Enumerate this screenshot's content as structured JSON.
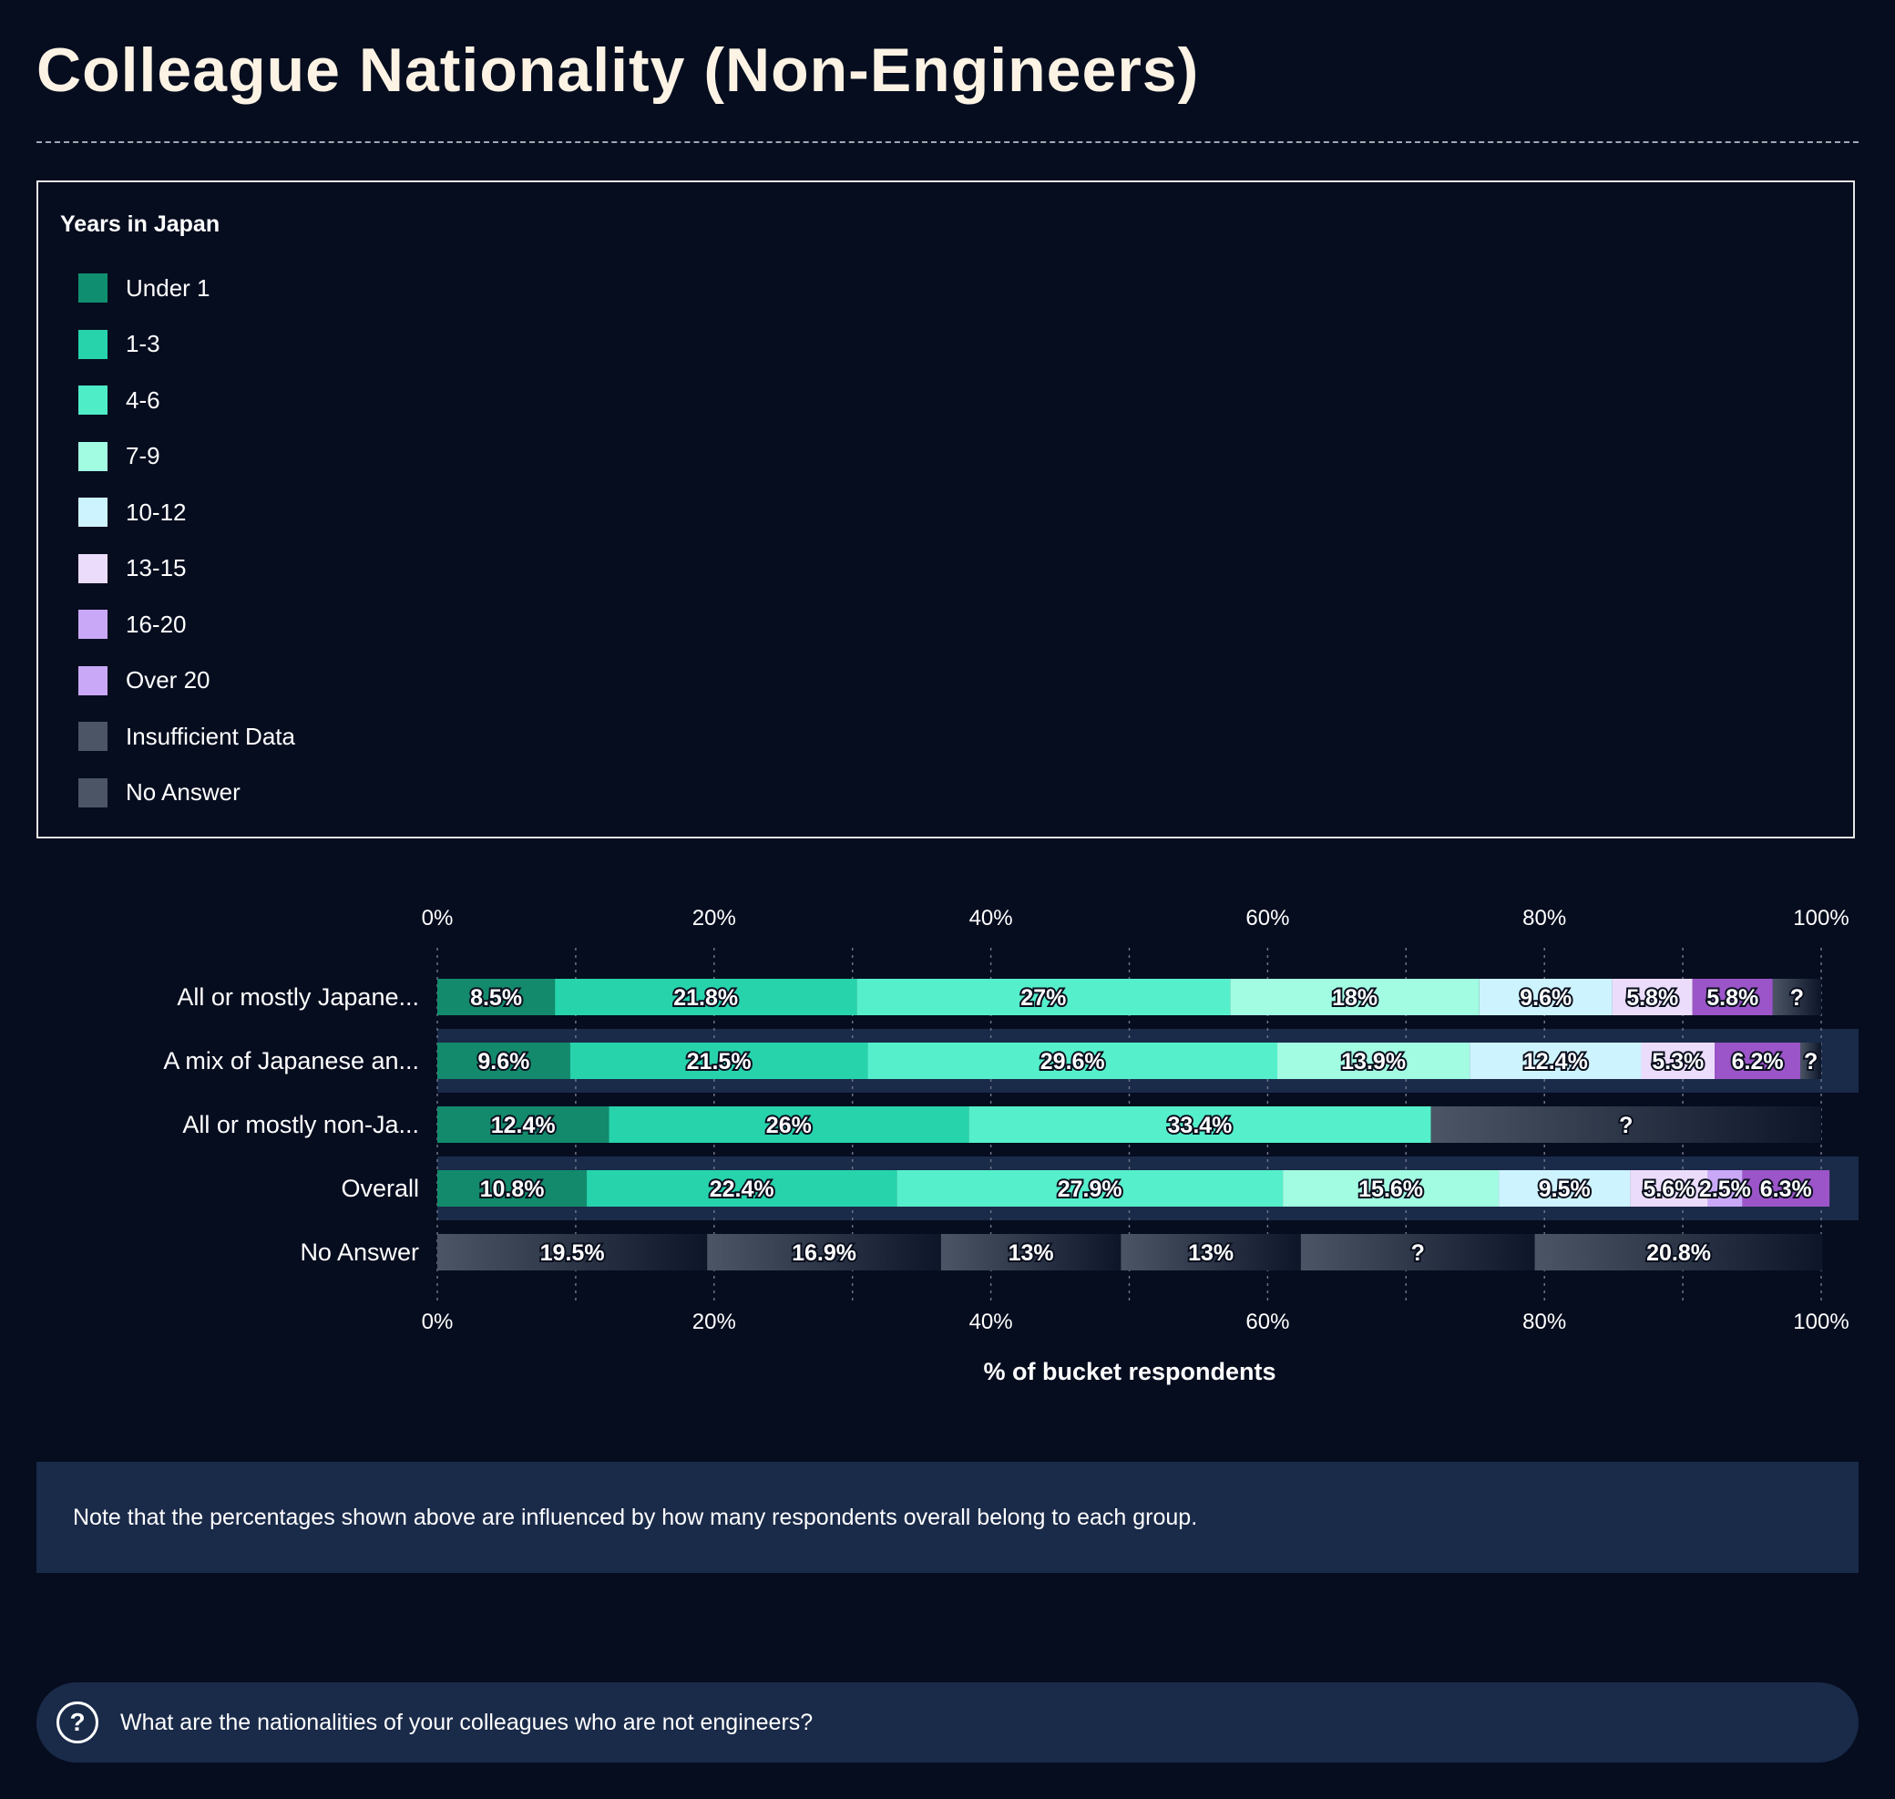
{
  "page": {
    "title": "Colleague Nationality (Non-Engineers)",
    "note": "Note that the percentages shown above are influenced by how many respondents overall belong to each group.",
    "question": "What are the nationalities of your colleagues who are not engineers?",
    "question_icon": "?"
  },
  "legend": {
    "title": "Years in Japan",
    "items": [
      {
        "label": "Under 1",
        "color": "#0f8f6f"
      },
      {
        "label": "1-3",
        "color": "#27d3ab"
      },
      {
        "label": "4-6",
        "color": "#4eedc8"
      },
      {
        "label": "7-9",
        "color": "#a2fce2"
      },
      {
        "label": "10-12",
        "color": "#cdf4fe"
      },
      {
        "label": "13-15",
        "color": "#ecdcfc"
      },
      {
        "label": "16-20",
        "color": "#c9a8f7"
      },
      {
        "label": "Over 20",
        "color": "#c9a8f7"
      },
      {
        "label": "Insufficient Data",
        "color": "#4b5565"
      },
      {
        "label": "No Answer",
        "color": "#4b5565"
      }
    ]
  },
  "chart_data": {
    "type": "bar",
    "orientation": "horizontal",
    "stacked": true,
    "xlabel": "% of bucket respondents",
    "xlim": [
      0,
      100
    ],
    "ticks": [
      "0%",
      "20%",
      "40%",
      "60%",
      "80%",
      "100%"
    ],
    "categories": [
      "All or mostly Japane...",
      "A mix of Japanese an...",
      "All or mostly non-Ja...",
      "Overall",
      "No Answer"
    ],
    "highlighted_rows": [
      1,
      3
    ],
    "rows": [
      {
        "segments": [
          {
            "v": 8.5,
            "label": "8.5%",
            "color": "#138a6c"
          },
          {
            "v": 21.8,
            "label": "21.8%",
            "color": "#27d3ab"
          },
          {
            "v": 27,
            "label": "27%",
            "color": "#55f0cb"
          },
          {
            "v": 18,
            "label": "18%",
            "color": "#a2fce2"
          },
          {
            "v": 9.6,
            "label": "9.6%",
            "color": "#cdf4fe"
          },
          {
            "v": 5.8,
            "label": "5.8%",
            "color": "#ecdcfc"
          },
          {
            "v": 5.8,
            "label": "5.8%",
            "color": "#9b55c8"
          },
          {
            "v": 3.5,
            "label": "?",
            "color": "#4b5565",
            "fade": true
          }
        ]
      },
      {
        "segments": [
          {
            "v": 9.6,
            "label": "9.6%",
            "color": "#138a6c"
          },
          {
            "v": 21.5,
            "label": "21.5%",
            "color": "#27d3ab"
          },
          {
            "v": 29.6,
            "label": "29.6%",
            "color": "#55f0cb"
          },
          {
            "v": 13.9,
            "label": "13.9%",
            "color": "#a2fce2"
          },
          {
            "v": 12.4,
            "label": "12.4%",
            "color": "#cdf4fe"
          },
          {
            "v": 5.3,
            "label": "5.3%",
            "color": "#ecdcfc"
          },
          {
            "v": 6.2,
            "label": "6.2%",
            "color": "#9b55c8"
          },
          {
            "v": 1.5,
            "label": "?",
            "color": "#4b5565",
            "fade": true
          }
        ]
      },
      {
        "segments": [
          {
            "v": 12.4,
            "label": "12.4%",
            "color": "#138a6c"
          },
          {
            "v": 26,
            "label": "26%",
            "color": "#27d3ab"
          },
          {
            "v": 33.4,
            "label": "33.4%",
            "color": "#55f0cb"
          },
          {
            "v": 28.2,
            "label": "?",
            "color": "#4b5565",
            "fade": true
          }
        ]
      },
      {
        "segments": [
          {
            "v": 10.8,
            "label": "10.8%",
            "color": "#138a6c"
          },
          {
            "v": 22.4,
            "label": "22.4%",
            "color": "#27d3ab"
          },
          {
            "v": 27.9,
            "label": "27.9%",
            "color": "#55f0cb"
          },
          {
            "v": 15.6,
            "label": "15.6%",
            "color": "#a2fce2"
          },
          {
            "v": 9.5,
            "label": "9.5%",
            "color": "#cdf4fe"
          },
          {
            "v": 5.6,
            "label": "5.6%",
            "color": "#ecdcfc"
          },
          {
            "v": 2.5,
            "label": "2.5%",
            "color": "#c9a8f7"
          },
          {
            "v": 6.3,
            "label": "6.3%",
            "color": "#9b55c8"
          }
        ]
      },
      {
        "segments": [
          {
            "v": 19.5,
            "label": "19.5%",
            "color": "#4b5565",
            "fade": true
          },
          {
            "v": 16.9,
            "label": "16.9%",
            "color": "#4b5565",
            "fade": true
          },
          {
            "v": 13,
            "label": "13%",
            "color": "#4b5565",
            "fade": true
          },
          {
            "v": 13,
            "label": "13%",
            "color": "#4b5565",
            "fade": true
          },
          {
            "v": 16.9,
            "label": "?",
            "color": "#4b5565",
            "fade": true
          },
          {
            "v": 20.8,
            "label": "20.8%",
            "color": "#4b5565",
            "fade": true
          }
        ]
      }
    ]
  }
}
